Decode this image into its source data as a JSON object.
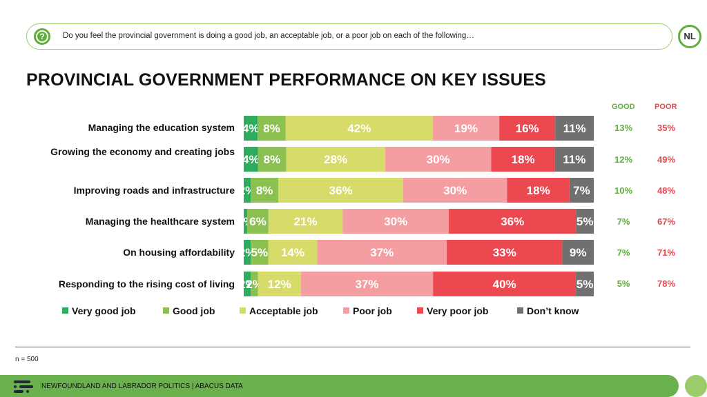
{
  "header": {
    "question": "Do you feel the provincial government is doing a good job, an acceptable job, or a poor job on each of the following…",
    "question_icon": "?",
    "logo_text": "NL"
  },
  "chart_data": {
    "type": "bar",
    "orientation": "horizontal",
    "stacked": true,
    "title": "PROVINCIAL GOVERNMENT PERFORMANCE ON KEY ISSUES",
    "categories": [
      "Managing the education system",
      "Growing the economy and creating jobs",
      "Improving roads and infrastructure",
      "Managing the healthcare system",
      "On housing affordability",
      "Responding to the rising cost of living"
    ],
    "series": [
      {
        "name": "Very good job",
        "color": "#2eab5c",
        "values": [
          4,
          4,
          2,
          1,
          2,
          2
        ]
      },
      {
        "name": "Good job",
        "color": "#8cc152",
        "values": [
          8,
          8,
          8,
          6,
          5,
          2
        ]
      },
      {
        "name": "Acceptable job",
        "color": "#d7db6a",
        "values": [
          42,
          28,
          36,
          21,
          14,
          12
        ]
      },
      {
        "name": "Poor job",
        "color": "#f59ea1",
        "values": [
          19,
          30,
          30,
          30,
          37,
          37
        ]
      },
      {
        "name": "Very poor job",
        "color": "#eb4850",
        "values": [
          16,
          18,
          18,
          36,
          33,
          40
        ]
      },
      {
        "name": "Don’t know",
        "color": "#707070",
        "values": [
          11,
          11,
          7,
          5,
          9,
          5
        ]
      }
    ],
    "value_labels": [
      [
        "4%",
        "8%",
        "42%",
        "19%",
        "16%",
        "11%"
      ],
      [
        "4%",
        "8%",
        "28%",
        "30%",
        "18%",
        "11%"
      ],
      [
        "2%",
        "8%",
        "36%",
        "30%",
        "18%",
        "7%"
      ],
      [
        "1%",
        "6%",
        "21%",
        "30%",
        "36%",
        "5%"
      ],
      [
        "2%",
        "5%",
        "14%",
        "37%",
        "33%",
        "9%"
      ],
      [
        "2%",
        "2%",
        "12%",
        "37%",
        "40%",
        "5%"
      ]
    ],
    "summary": {
      "good_label": "GOOD",
      "poor_label": "POOR",
      "good": [
        "13%",
        "12%",
        "10%",
        "7%",
        "7%",
        "5%"
      ],
      "poor": [
        "35%",
        "49%",
        "48%",
        "67%",
        "71%",
        "78%"
      ]
    },
    "xlim": [
      0,
      100
    ],
    "legend_position": "bottom"
  },
  "legend": {
    "items": [
      "Very good job",
      "Good job",
      "Acceptable job",
      "Poor job",
      "Very poor job",
      "Don’t know"
    ]
  },
  "footer": {
    "sample_size": "n = 500",
    "source": "NEWFOUNDLAND AND LABRADOR POLITICS  |  ABACUS DATA"
  }
}
